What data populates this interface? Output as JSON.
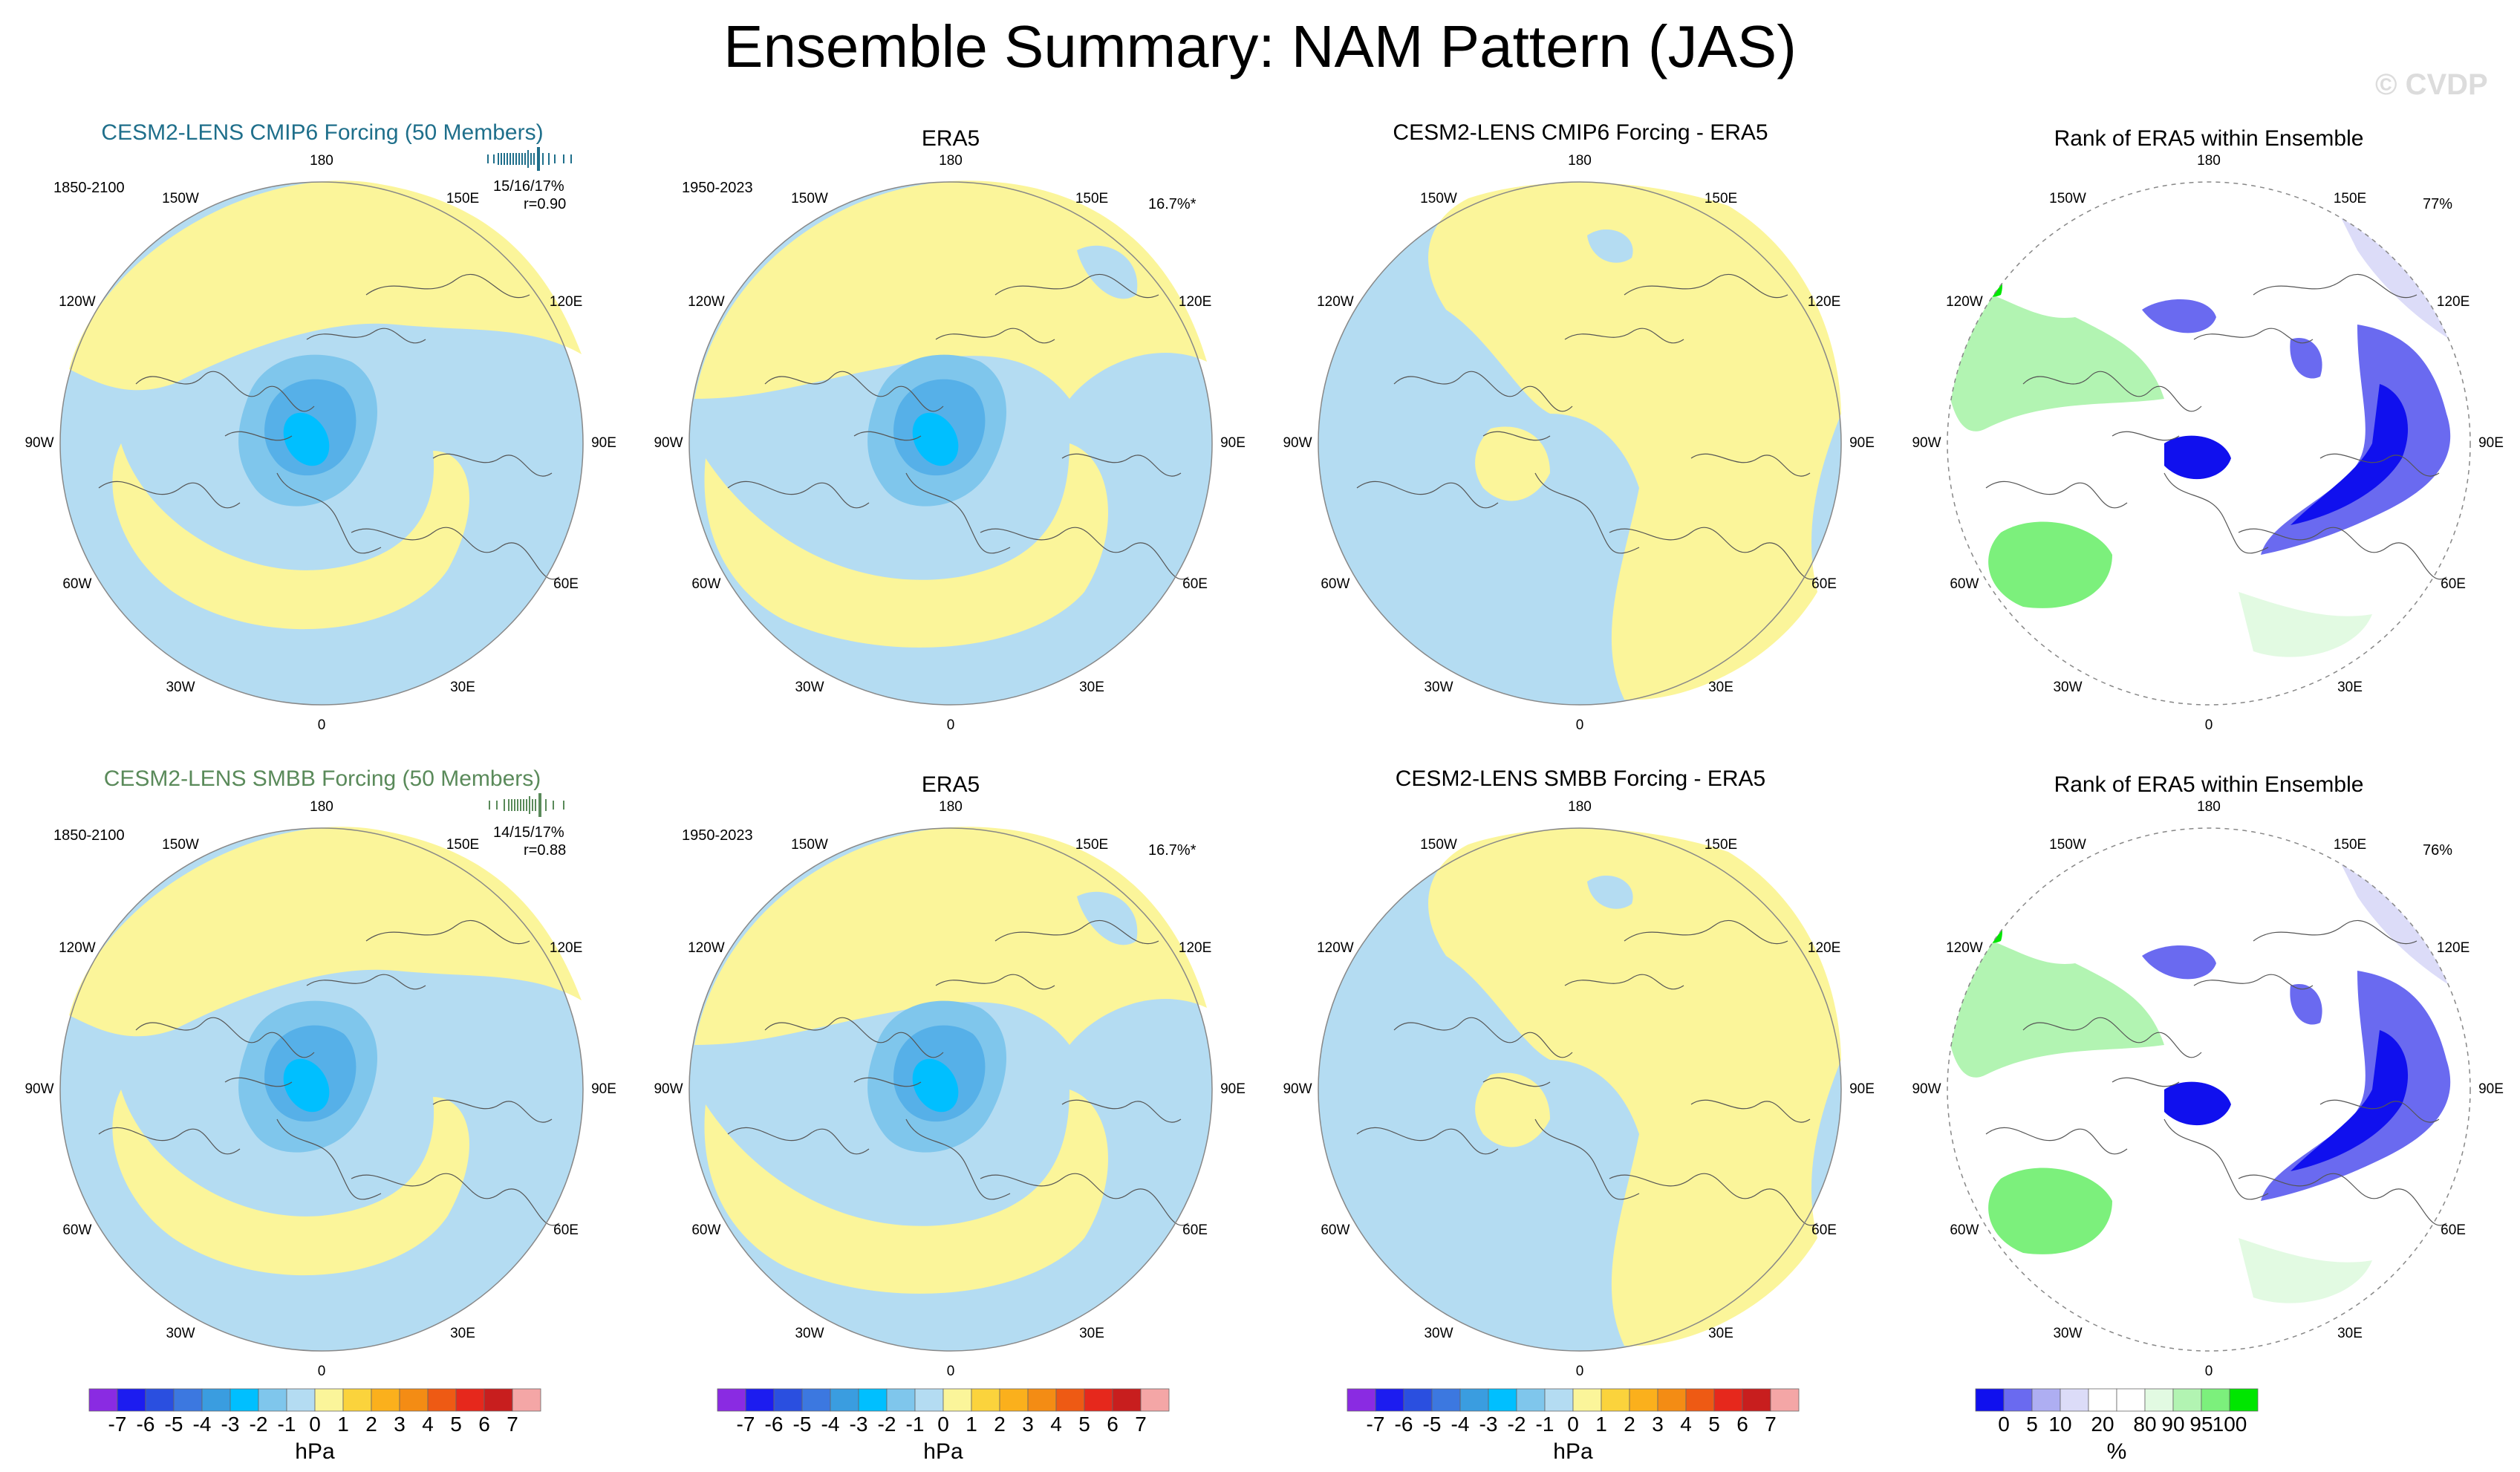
{
  "title": "Ensemble Summary: NAM Pattern (JAS)",
  "copyright": "© CVDP",
  "lon_labels": {
    "180": "180",
    "150E": "150E",
    "120E": "120E",
    "90E": "90E",
    "60E": "60E",
    "30E": "30E",
    "0": "0",
    "30W": "30W",
    "60W": "60W",
    "90W": "90W",
    "120W": "120W",
    "150W": "150W"
  },
  "rows": [
    {
      "model": {
        "title": "CESM2-LENS CMIP6 Forcing (50 Members)",
        "period": "1850-2100",
        "pct": "15/16/17%",
        "corr": "r=0.90"
      },
      "obs": {
        "title": "ERA5",
        "period": "1950-2023",
        "pct": "16.7%*"
      },
      "diff": {
        "title": "CESM2-LENS CMIP6 Forcing - ERA5"
      },
      "rank": {
        "title": "Rank of ERA5 within Ensemble",
        "pct": "77%"
      }
    },
    {
      "model": {
        "title": "CESM2-LENS SMBB Forcing (50 Members)",
        "period": "1850-2100",
        "pct": "14/15/17%",
        "corr": "r=0.88"
      },
      "obs": {
        "title": "ERA5",
        "period": "1950-2023",
        "pct": "16.7%*"
      },
      "diff": {
        "title": "CESM2-LENS SMBB Forcing - ERA5"
      },
      "rank": {
        "title": "Rank of ERA5 within Ensemble",
        "pct": "76%"
      }
    }
  ],
  "colorbar_hpa": {
    "unit": "hPa",
    "ticks": [
      "-7",
      "-6",
      "-5",
      "-4",
      "-3",
      "-2",
      "-1",
      "0",
      "1",
      "2",
      "3",
      "4",
      "5",
      "6",
      "7"
    ],
    "colors": [
      "#8a2be2",
      "#1c1cf0",
      "#2a4fe0",
      "#3c78e0",
      "#3a9de0",
      "#00bfff",
      "#7fc6ec",
      "#b4dcf2",
      "#fbf59a",
      "#fbd33c",
      "#fbb01c",
      "#f48c14",
      "#ee5a14",
      "#e6281c",
      "#c81e1e",
      "#f4a6a6"
    ]
  },
  "colorbar_rank": {
    "unit": "%",
    "ticks": [
      "0",
      "5",
      "10",
      "20",
      "80",
      "90",
      "95",
      "100"
    ],
    "colors": [
      "#1010ee",
      "#6a6af0",
      "#aeaef2",
      "#dcdcf8",
      "#ffffff",
      "#ffffff",
      "#e2fae2",
      "#b2f4b2",
      "#7cf07c",
      "#00e600"
    ]
  },
  "chart_data": [
    {
      "type": "heatmap",
      "panel": "CESM2-LENS CMIP6 Forcing (50 Members)",
      "projection": "polar stereographic, Northern Hemisphere",
      "variable": "NAM pattern regression (sea level pressure)",
      "unit": "hPa",
      "levels": [
        -7,
        -6,
        -5,
        -4,
        -3,
        -2,
        -1,
        0,
        1,
        2,
        3,
        4,
        5,
        6,
        7
      ],
      "center_min_hPa": -4,
      "notes": "negative over Arctic, positive ring mid-latitudes"
    },
    {
      "type": "heatmap",
      "panel": "ERA5",
      "period": "1950-2023",
      "unit": "hPa",
      "center_min_hPa": -4
    },
    {
      "type": "heatmap",
      "panel": "CESM2-LENS CMIP6 Forcing - ERA5",
      "unit": "hPa",
      "range_hPa": [
        -1,
        1
      ]
    },
    {
      "type": "heatmap",
      "panel": "Rank of ERA5 within Ensemble",
      "unit": "%",
      "levels": [
        0,
        5,
        10,
        20,
        80,
        90,
        95,
        100
      ],
      "summary_pct": 77
    },
    {
      "type": "heatmap",
      "panel": "CESM2-LENS SMBB Forcing (50 Members)",
      "unit": "hPa",
      "center_min_hPa": -4
    },
    {
      "type": "heatmap",
      "panel": "ERA5",
      "period": "1950-2023",
      "unit": "hPa",
      "center_min_hPa": -4
    },
    {
      "type": "heatmap",
      "panel": "CESM2-LENS SMBB Forcing - ERA5",
      "unit": "hPa",
      "range_hPa": [
        -1,
        1
      ]
    },
    {
      "type": "heatmap",
      "panel": "Rank of ERA5 within Ensemble",
      "unit": "%",
      "levels": [
        0,
        5,
        10,
        20,
        80,
        90,
        95,
        100
      ],
      "summary_pct": 76
    }
  ]
}
